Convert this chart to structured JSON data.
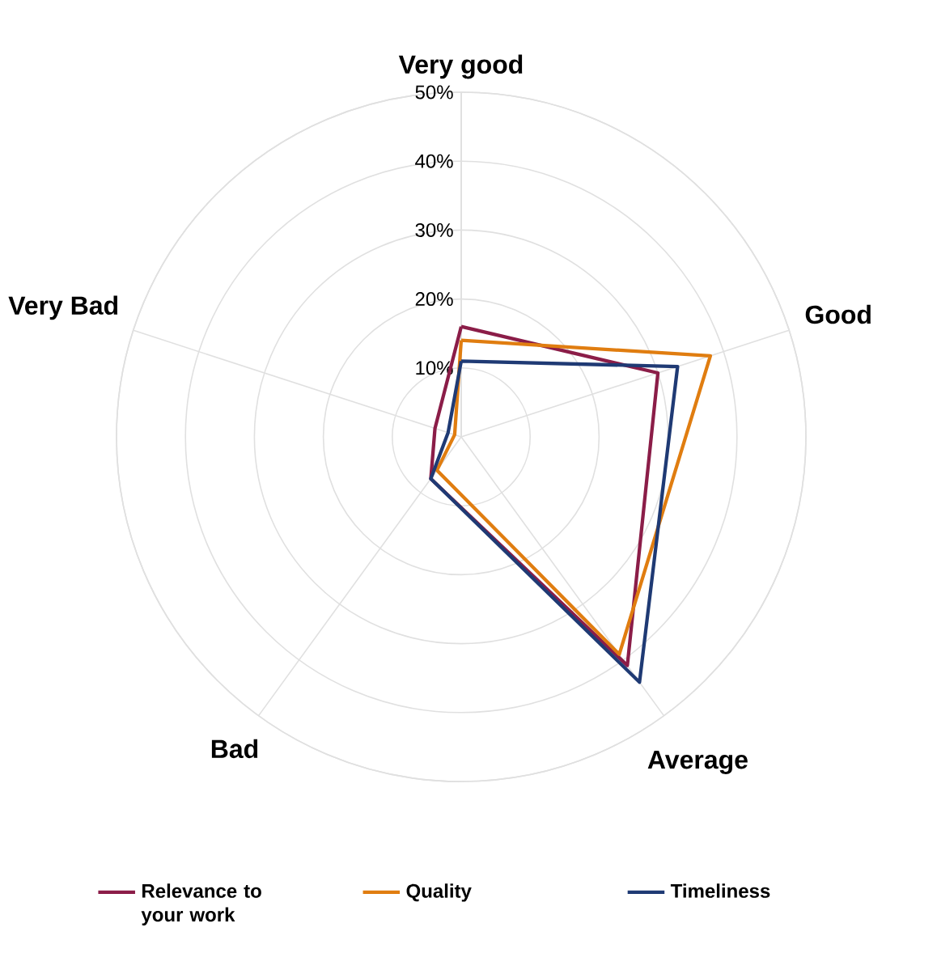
{
  "chart_data": {
    "type": "radar",
    "categories": [
      "Very good",
      "Good",
      "Average",
      "Bad",
      "Very Bad"
    ],
    "ylim": [
      0,
      50
    ],
    "yticks": [
      {
        "value": 10,
        "label": "10%"
      },
      {
        "value": 20,
        "label": "20%"
      },
      {
        "value": 30,
        "label": "30%"
      },
      {
        "value": 40,
        "label": "40%"
      },
      {
        "value": 50,
        "label": "50%"
      }
    ],
    "grid": true,
    "legend": "bottom",
    "series": [
      {
        "name": "Relevance to your work",
        "color": "#8b1d48",
        "values": [
          16,
          30,
          41,
          7.5,
          4
        ]
      },
      {
        "name": "Quality",
        "color": "#e07d10",
        "values": [
          14,
          38,
          39,
          6,
          1
        ]
      },
      {
        "name": "Timeliness",
        "color": "#1f3a74",
        "values": [
          11,
          33,
          44,
          7.5,
          2
        ]
      }
    ]
  }
}
